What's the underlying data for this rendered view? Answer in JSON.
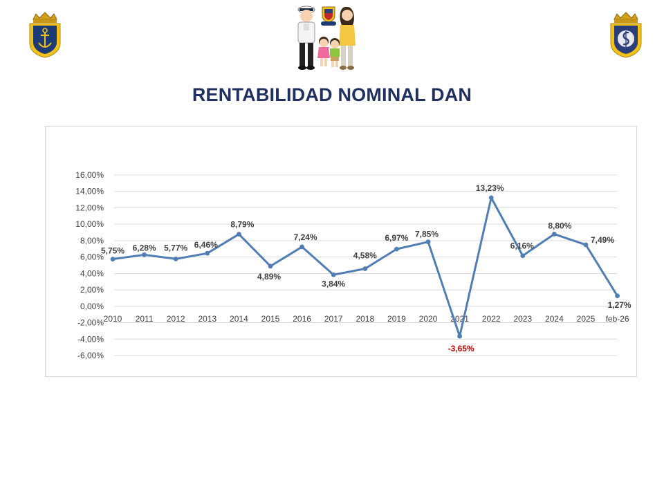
{
  "title": "RENTABILIDAD NOMINAL DAN",
  "chart_data": {
    "type": "line",
    "title": "RENTABILIDAD NOMINAL DAN",
    "xlabel": "",
    "ylabel": "",
    "categories": [
      "2010",
      "2011",
      "2012",
      "2013",
      "2014",
      "2015",
      "2016",
      "2017",
      "2018",
      "2019",
      "2020",
      "2021",
      "2022",
      "2023",
      "2024",
      "2025",
      "feb-26"
    ],
    "series": [
      {
        "name": "Rentabilidad nominal DAN",
        "values": [
          5.75,
          6.28,
          5.77,
          6.46,
          8.79,
          4.89,
          7.24,
          3.84,
          4.58,
          6.97,
          7.85,
          -3.65,
          13.23,
          6.16,
          8.8,
          7.49,
          1.27
        ],
        "labels": [
          "5,75%",
          "6,28%",
          "5,77%",
          "6,46%",
          "8,79%",
          "4,89%",
          "7,24%",
          "3,84%",
          "4,58%",
          "6,97%",
          "7,85%",
          "-3,65%",
          "13,23%",
          "6,16%",
          "8,80%",
          "7,49%",
          "1,27%"
        ],
        "color": "#4f7db4"
      }
    ],
    "ylim": [
      -6,
      16
    ],
    "yticks": [
      16,
      14,
      12,
      10,
      8,
      6,
      4,
      2,
      0,
      -2,
      -4,
      -6
    ],
    "ytick_labels": [
      "16,00%",
      "14,00%",
      "12,00%",
      "10,00%",
      "8,00%",
      "6,00%",
      "4,00%",
      "2,00%",
      "0,00%",
      "-2,00%",
      "-4,00%",
      "-6,00%"
    ],
    "grid": true,
    "negative_label_color": "#c00000"
  },
  "colors": {
    "title": "#1f2f5f",
    "line": "#4f7db4",
    "grid": "#d9d9d9",
    "negative": "#c00000"
  }
}
